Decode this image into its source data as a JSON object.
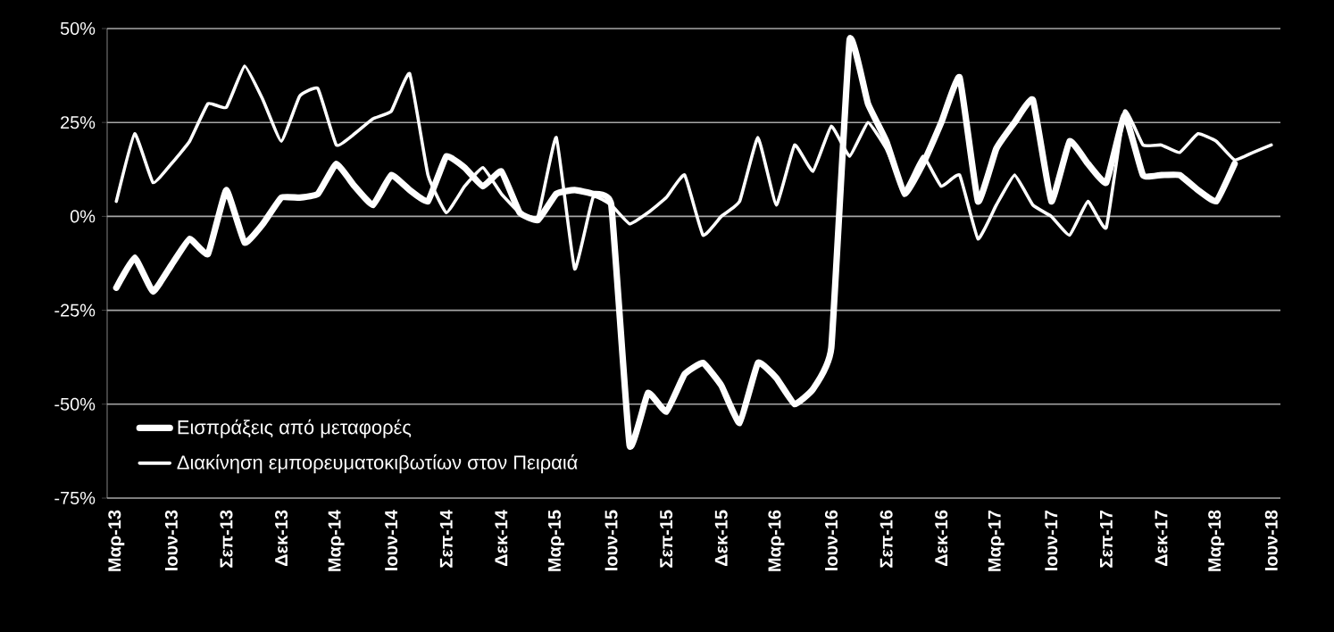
{
  "chart_data": {
    "type": "line",
    "categories": [
      "Μαρ-13",
      null,
      null,
      "Ιουν-13",
      null,
      null,
      "Σεπ-13",
      null,
      null,
      "Δεκ-13",
      null,
      null,
      "Μαρ-14",
      null,
      null,
      "Ιουν-14",
      null,
      null,
      "Σεπ-14",
      null,
      null,
      "Δεκ-14",
      null,
      null,
      "Μαρ-15",
      null,
      null,
      "Ιουν-15",
      null,
      null,
      "Σεπ-15",
      null,
      null,
      "Δεκ-15",
      null,
      null,
      "Μαρ-16",
      null,
      null,
      "Ιουν-16",
      null,
      null,
      "Σεπ-16",
      null,
      null,
      "Δεκ-16",
      null,
      null,
      "Μαρ-17",
      null,
      null,
      "Ιουν-17",
      null,
      null,
      "Σεπ-17",
      null,
      null,
      "Δεκ-17",
      null,
      null,
      "Μαρ-18",
      null,
      null,
      "Ιουν-18"
    ],
    "series": [
      {
        "name": "Εισπράξεις από μεταφορές",
        "color": "#ffffff",
        "values": [
          -19,
          -11,
          -20,
          -13,
          -6,
          -10,
          7,
          -7,
          -2,
          5,
          5,
          6,
          14,
          8,
          3,
          11,
          7,
          4,
          16,
          13,
          8,
          12,
          1,
          -1,
          6,
          7,
          6,
          3,
          -61,
          -47,
          -52,
          -42,
          -39,
          -45,
          -55,
          -39,
          -43,
          -50,
          -46,
          -35,
          47,
          30,
          20,
          6,
          14,
          25,
          37,
          4,
          18,
          25,
          31,
          4,
          20,
          14,
          9,
          27,
          11,
          11,
          11,
          7,
          4,
          14,
          null,
          null
        ]
      },
      {
        "name": "Διακίνηση εμπορευματοκιβωτίων στον Πειραιά",
        "color": "#ffffff",
        "values": [
          4,
          22,
          9,
          14,
          20,
          30,
          29,
          40,
          31,
          20,
          32,
          34,
          19,
          22,
          26,
          28,
          38,
          11,
          1,
          8,
          13,
          6,
          1,
          0,
          21,
          -14,
          5,
          3,
          -2,
          1,
          5,
          11,
          -5,
          0,
          4,
          21,
          3,
          19,
          12,
          24,
          16,
          25,
          18,
          7,
          16,
          8,
          11,
          -6,
          3,
          11,
          3,
          0,
          -5,
          4,
          -3,
          28,
          19,
          19,
          17,
          22,
          20,
          15,
          17,
          19
        ]
      }
    ],
    "ylim": [
      -75,
      50
    ],
    "yticks": [
      {
        "value": -75,
        "label": "-75%"
      },
      {
        "value": -50,
        "label": "-50%"
      },
      {
        "value": -25,
        "label": "-25%"
      },
      {
        "value": 0,
        "label": "0%"
      },
      {
        "value": 25,
        "label": "25%"
      },
      {
        "value": 50,
        "label": "50%"
      }
    ],
    "grid": "y",
    "legend": "bottom left"
  }
}
